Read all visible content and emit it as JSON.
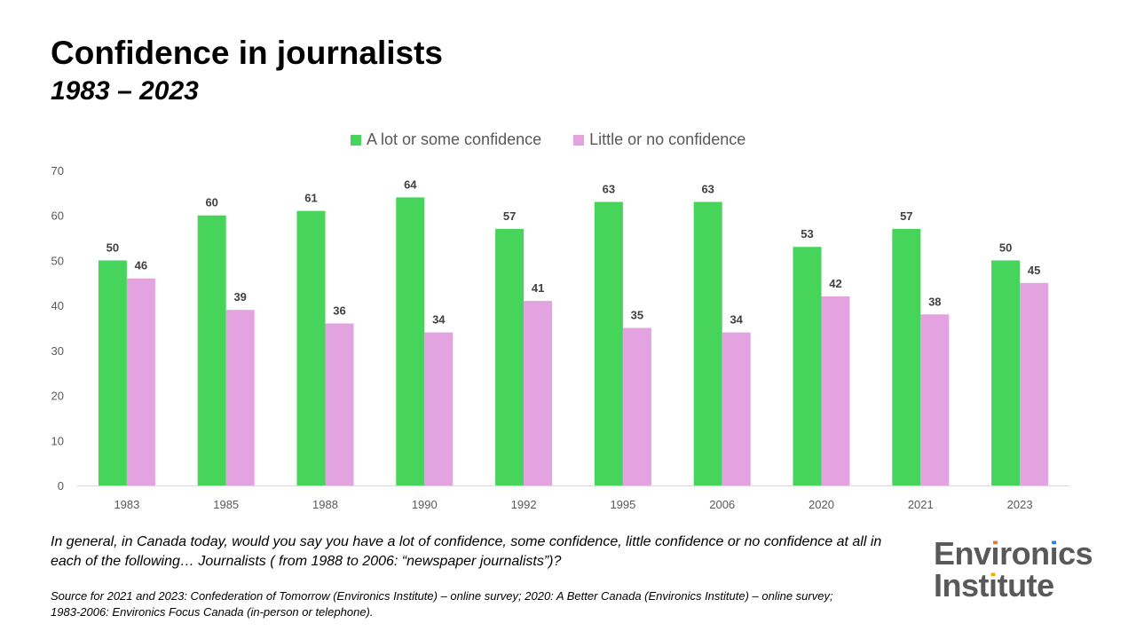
{
  "title": "Confidence in journalists",
  "subtitle": "1983 – 2023",
  "question": "In general, in Canada today, would you say you have a lot of confidence, some confidence, little confidence or no confidence at all in each of the following… Journalists ( from 1988 to 2006: “newspaper journalists”)?",
  "source": "Source for 2021 and 2023: Confederation of Tomorrow (Environics Institute) – online survey; 2020: A Better Canada (Environics Institute) – online survey; 1983-2006: Environics Focus Canada (in-person or telephone).",
  "logo": {
    "line1": "Environics",
    "line2": "Institute",
    "text_color": "#595959",
    "accent_colors": [
      "#e87722",
      "#2a7de1",
      "#f2a900"
    ]
  },
  "colors": {
    "series1": "#46d45a",
    "series2": "#e3a2e0",
    "axis_text": "#595959",
    "data_label": "#404040",
    "baseline": "#d9d9d9"
  },
  "chart_data": {
    "type": "bar",
    "categories": [
      "1983",
      "1985",
      "1988",
      "1990",
      "1992",
      "1995",
      "2006",
      "2020",
      "2021",
      "2023"
    ],
    "series": [
      {
        "name": "A lot or some confidence",
        "values": [
          50,
          60,
          61,
          64,
          57,
          63,
          63,
          53,
          57,
          50
        ]
      },
      {
        "name": "Little or no confidence",
        "values": [
          46,
          39,
          36,
          34,
          41,
          35,
          34,
          42,
          38,
          45
        ]
      }
    ],
    "ylim": [
      0,
      70
    ],
    "yticks": [
      0,
      10,
      20,
      30,
      40,
      50,
      60,
      70
    ],
    "legend": "top-center",
    "grid": false,
    "data_labels": true
  }
}
